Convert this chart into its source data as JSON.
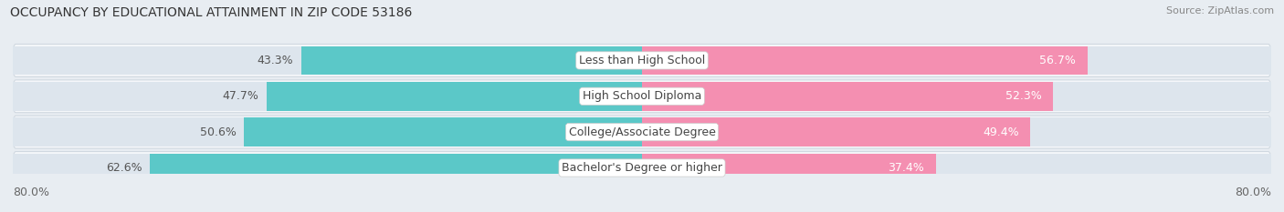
{
  "title": "OCCUPANCY BY EDUCATIONAL ATTAINMENT IN ZIP CODE 53186",
  "source": "Source: ZipAtlas.com",
  "categories": [
    "Less than High School",
    "High School Diploma",
    "College/Associate Degree",
    "Bachelor's Degree or higher"
  ],
  "owner_values": [
    43.3,
    47.7,
    50.6,
    62.6
  ],
  "renter_values": [
    56.7,
    52.3,
    49.4,
    37.4
  ],
  "owner_color": "#5bc8c8",
  "renter_color": "#f48fb1",
  "background_color": "#e8edf2",
  "row_bg_color": "#f5f7fa",
  "row_border_color": "#d0d8e0",
  "bar_bg_left": "#dde5ed",
  "bar_bg_right": "#dde5ed",
  "center_label_bg": "#ffffff",
  "value_label_color_inside": "#ffffff",
  "value_label_color_outside": "#555555",
  "title_fontsize": 10,
  "source_fontsize": 8,
  "label_fontsize": 9,
  "legend_fontsize": 9,
  "xlim": 80.0
}
